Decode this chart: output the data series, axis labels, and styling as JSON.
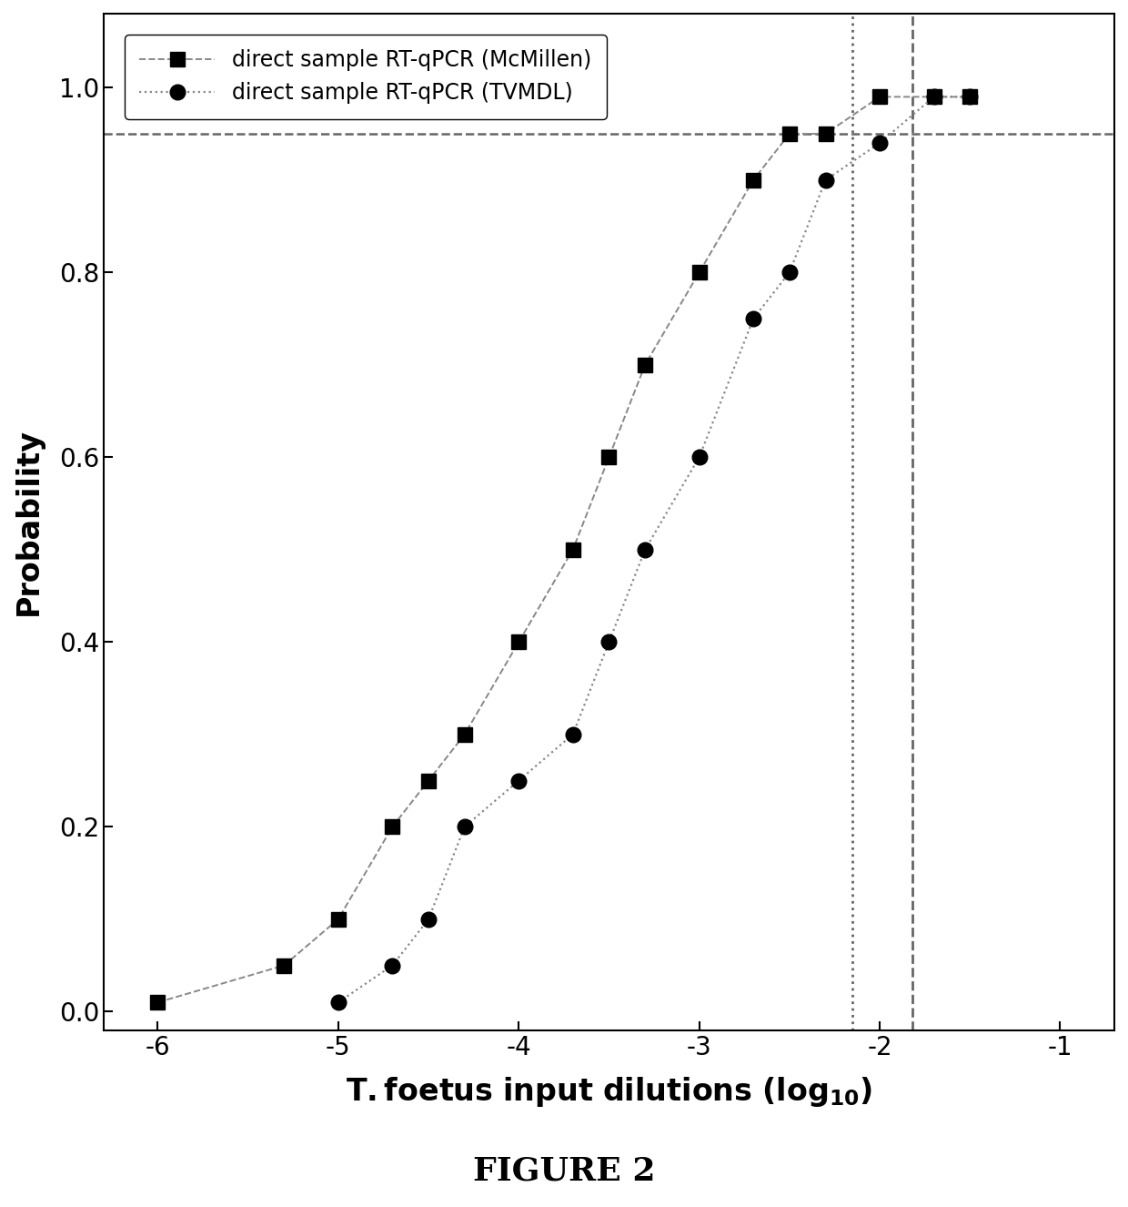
{
  "series1_label": "direct sample RT-qPCR (McMillen)",
  "series2_label": "direct sample RT-qPCR (TVMDL)",
  "series1_x": [
    -6.0,
    -5.3,
    -5.0,
    -4.7,
    -4.5,
    -4.3,
    -4.0,
    -3.7,
    -3.5,
    -3.3,
    -3.0,
    -2.7,
    -2.5,
    -2.3,
    -2.0,
    -1.7,
    -1.5
  ],
  "series1_y": [
    0.01,
    0.05,
    0.1,
    0.2,
    0.25,
    0.3,
    0.4,
    0.5,
    0.6,
    0.7,
    0.8,
    0.9,
    0.95,
    0.95,
    0.99,
    0.99,
    0.99
  ],
  "series2_x": [
    -5.0,
    -4.7,
    -4.5,
    -4.3,
    -4.0,
    -3.7,
    -3.5,
    -3.3,
    -3.0,
    -2.7,
    -2.5,
    -2.3,
    -2.0,
    -1.7,
    -1.5
  ],
  "series2_y": [
    0.01,
    0.05,
    0.1,
    0.2,
    0.25,
    0.3,
    0.4,
    0.5,
    0.6,
    0.75,
    0.8,
    0.9,
    0.94,
    0.99,
    0.99
  ],
  "hline_y": 0.95,
  "vline1_x": -2.15,
  "vline2_x": -1.82,
  "xlim": [
    -6.3,
    -0.7
  ],
  "ylim": [
    -0.02,
    1.08
  ],
  "xticks": [
    -6,
    -5,
    -4,
    -3,
    -2,
    -1
  ],
  "yticks": [
    0.0,
    0.2,
    0.4,
    0.6,
    0.8,
    1.0
  ],
  "ytick_labels": [
    "0.0",
    "0.2",
    "0.4",
    "0.6",
    "0.8",
    "1.0"
  ],
  "xtick_labels": [
    "-6",
    "-5",
    "-4",
    "-3",
    "-2",
    "-1"
  ],
  "ylabel": "Probability",
  "figure_label": "FIGURE 2",
  "line_color": "#888888",
  "marker_color": "#000000",
  "background_color": "#ffffff",
  "tick_fontsize": 20,
  "label_fontsize": 24,
  "legend_fontsize": 17,
  "figure_label_fontsize": 26
}
